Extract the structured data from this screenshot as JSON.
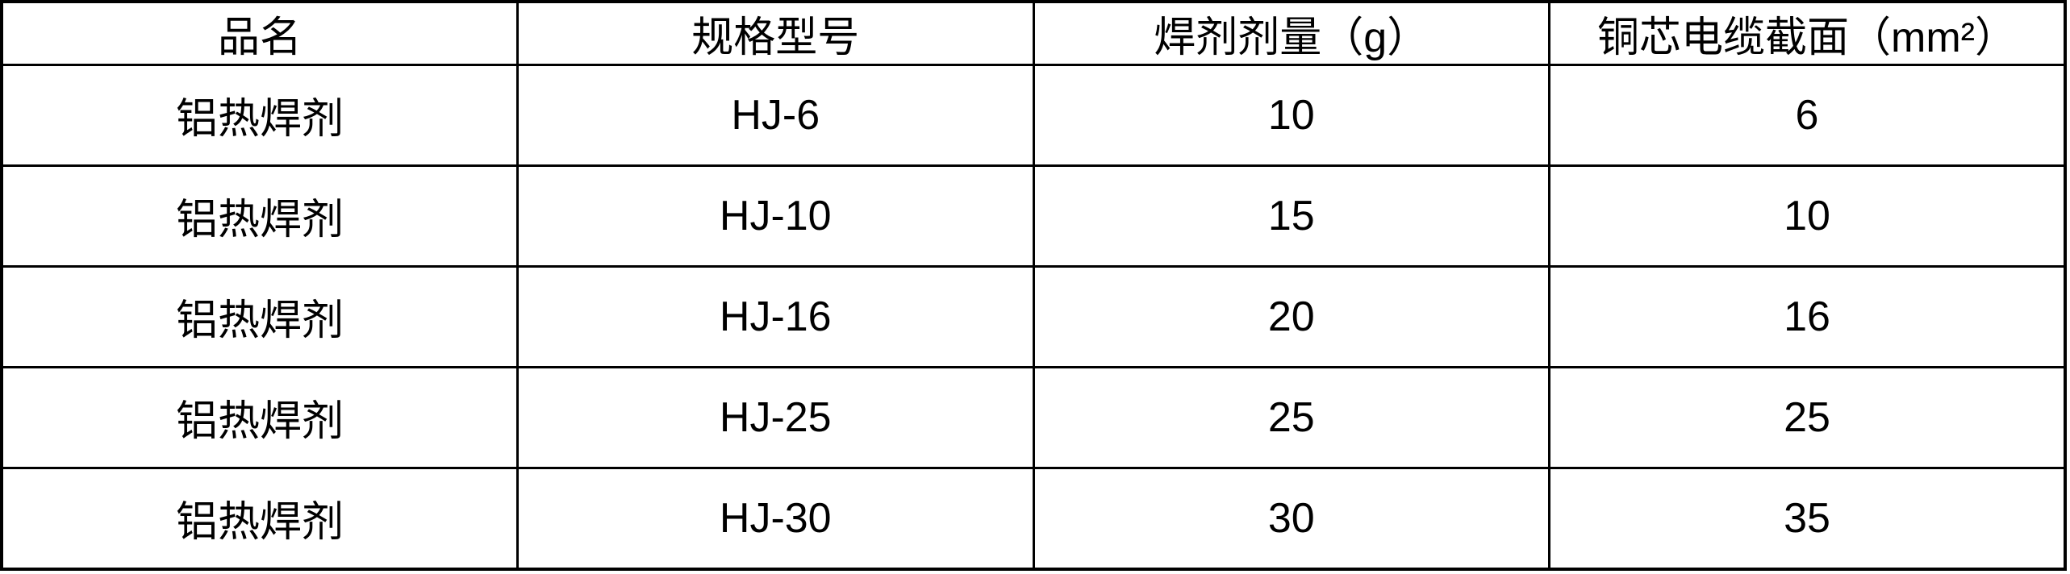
{
  "colors": {
    "bg": "#ffffff",
    "text": "#000000",
    "border": "#000000"
  },
  "table": {
    "headers": [
      "品名",
      "规格型号",
      "焊剂剂量（g）",
      "铜芯电缆截面（mm²）"
    ],
    "rows": [
      [
        "铝热焊剂",
        "HJ-6",
        "10",
        "6"
      ],
      [
        "铝热焊剂",
        "HJ-10",
        "15",
        "10"
      ],
      [
        "铝热焊剂",
        "HJ-16",
        "20",
        "16"
      ],
      [
        "铝热焊剂",
        "HJ-25",
        "25",
        "25"
      ],
      [
        "铝热焊剂",
        "HJ-30",
        "30",
        "35"
      ]
    ]
  }
}
